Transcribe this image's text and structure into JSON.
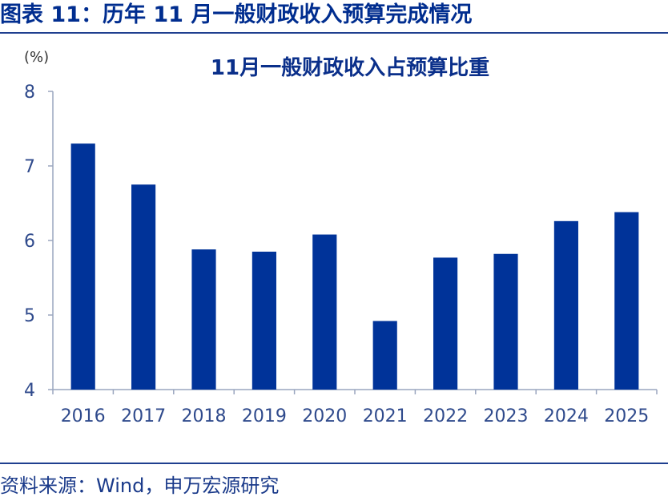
{
  "figure": {
    "title": "图表 11：历年 11 月一般财政收入预算完成情况",
    "source": "资料来源：Wind，申万宏源研究"
  },
  "colors": {
    "bar": "#003399",
    "title": "#002d8f",
    "rule": "#1f3f8f"
  },
  "chart_data": {
    "type": "bar",
    "title": "11月一般财政收入占预算比重",
    "unit": "(%)",
    "xlabel": "",
    "ylabel": "",
    "categories": [
      "2016",
      "2017",
      "2018",
      "2019",
      "2020",
      "2021",
      "2022",
      "2023",
      "2024",
      "2025"
    ],
    "values": [
      7.3,
      6.75,
      5.88,
      5.85,
      6.08,
      4.92,
      5.77,
      5.82,
      6.26,
      6.38
    ],
    "ylim": [
      4,
      8
    ],
    "yticks": [
      4,
      5,
      6,
      7,
      8
    ],
    "grid": false,
    "legend": "none"
  }
}
